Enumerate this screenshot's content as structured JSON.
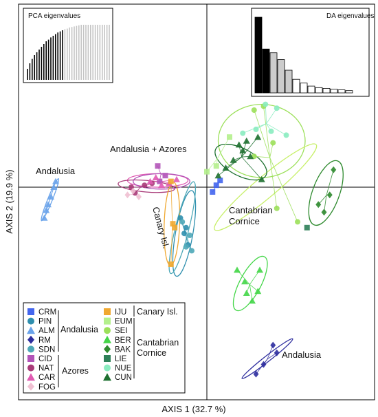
{
  "chart_data": {
    "type": "scatter",
    "xlabel": "AXIS 1 (32.7 %)",
    "ylabel": "AXIS 2 (19.9 %)",
    "annotations": [
      {
        "text": "Andalusia",
        "at": "left"
      },
      {
        "text": "Andalusia + Azores",
        "at": "center-top"
      },
      {
        "text": "Canary Isl.",
        "at": "center"
      },
      {
        "text": "Cantabrian",
        "at": "center-right"
      },
      {
        "text": "Cornice",
        "at": "center-right"
      },
      {
        "text": "Andalusia",
        "at": "bottom-right"
      }
    ],
    "insets": {
      "pca": {
        "title": "PCA eigenvalues",
        "values": [
          0.2,
          0.3,
          0.38,
          0.45,
          0.5,
          0.55,
          0.6,
          0.65,
          0.7,
          0.73,
          0.77,
          0.8,
          0.83,
          0.86,
          0.88,
          0.9,
          0.92,
          0.93,
          0.95,
          0.96,
          0.97,
          0.98,
          0.99,
          1,
          1,
          1,
          1,
          1,
          1,
          1,
          1,
          1,
          1,
          1,
          1,
          1
        ],
        "retained": 16
      },
      "da": {
        "title": "DA eigenvalues",
        "values": [
          1.0,
          0.58,
          0.53,
          0.44,
          0.3,
          0.18,
          0.13,
          0.09,
          0.07,
          0.06,
          0.05,
          0.04,
          0.03
        ],
        "colors": [
          "#000000",
          "#000000",
          "#cccccc",
          "#cccccc",
          "#cccccc",
          "#ffffff",
          "#ffffff",
          "#ffffff",
          "#ffffff",
          "#ffffff",
          "#ffffff",
          "#ffffff",
          "#ffffff"
        ]
      }
    },
    "series": [
      {
        "name": "CRM",
        "region": "Andalusia",
        "color": "#4466ee",
        "shape": "square",
        "points": [
          [
            0.3,
            -0.25
          ],
          [
            0.5,
            0.1
          ],
          [
            0.7,
            0.35
          ]
        ]
      },
      {
        "name": "PIN",
        "region": "Andalusia",
        "color": "#2f8fae",
        "shape": "circle",
        "points": [
          [
            -1.2,
            -2.4
          ],
          [
            -1.4,
            -1.6
          ],
          [
            -1.0,
            -3.0
          ],
          [
            -1.1,
            -2.1
          ]
        ]
      },
      {
        "name": "ALM",
        "region": "Andalusia",
        "color": "#6aa3ea",
        "shape": "triangle",
        "points": [
          [
            -8.0,
            0.3
          ],
          [
            -8.1,
            0.0
          ],
          [
            -8.25,
            -0.5
          ],
          [
            -8.4,
            -0.9
          ],
          [
            -8.5,
            -1.2
          ],
          [
            -8.6,
            -1.6
          ]
        ]
      },
      {
        "name": "RM",
        "region": "Andalusia",
        "color": "#2e2e9e",
        "shape": "diamond",
        "points": [
          [
            3.5,
            -8.2
          ],
          [
            3.7,
            -8.6
          ],
          [
            3.0,
            -9.2
          ],
          [
            2.6,
            -9.7
          ]
        ]
      },
      {
        "name": "SDN",
        "region": "Andalusia",
        "color": "#4fa9b8",
        "shape": "circle",
        "points": [
          [
            -0.9,
            -2.5
          ],
          [
            -1.1,
            -3.1
          ],
          [
            -0.8,
            -3.3
          ],
          [
            -1.3,
            -1.8
          ]
        ]
      },
      {
        "name": "CID",
        "region": "Azores",
        "color": "#b254b8",
        "shape": "square",
        "points": [
          [
            -2.6,
            1.1
          ],
          [
            -2.5,
            0.3
          ],
          [
            -2.2,
            0.6
          ]
        ]
      },
      {
        "name": "NAT",
        "region": "Azores",
        "color": "#a83a78",
        "shape": "circle",
        "points": [
          [
            -4.0,
            0.0
          ],
          [
            -3.3,
            0.1
          ],
          [
            -3.8,
            -0.3
          ],
          [
            -2.9,
            0.2
          ]
        ]
      },
      {
        "name": "CAR",
        "region": "Azores",
        "color": "#e05ab2",
        "shape": "triangle",
        "points": [
          [
            -3.0,
            0.3
          ],
          [
            -2.7,
            0.5
          ],
          [
            -2.4,
            0.1
          ],
          [
            -2.0,
            0.2
          ],
          [
            -1.6,
            0.4
          ]
        ]
      },
      {
        "name": "FOG",
        "region": "Azores",
        "color": "#f0c0d2",
        "shape": "diamond",
        "points": [
          [
            -4.2,
            -0.4
          ],
          [
            -3.9,
            -0.2
          ],
          [
            -3.6,
            -0.5
          ]
        ]
      },
      {
        "name": "IJU",
        "region": "Canary Isl.",
        "color": "#f0a830",
        "shape": "square",
        "points": [
          [
            -1.9,
            0.3
          ],
          [
            -1.8,
            -1.9
          ],
          [
            -1.9,
            -4.0
          ],
          [
            -1.7,
            -2.1
          ]
        ]
      },
      {
        "name": "EUM",
        "region": "Cantabrian Cornice",
        "color": "#b4f08c",
        "shape": "square",
        "points": [
          [
            0.0,
            0.8
          ],
          [
            0.5,
            1.1
          ],
          [
            1.2,
            2.6
          ]
        ]
      },
      {
        "name": "SEI",
        "region": "Cantabrian Cornice",
        "color": "#9ce05a",
        "shape": "circle",
        "points": [
          [
            2.5,
            4.0
          ],
          [
            3.0,
            4.2
          ],
          [
            3.5,
            2.3
          ],
          [
            2.5,
            1.6
          ],
          [
            3.7,
            -1.1
          ],
          [
            4.8,
            -1.8
          ]
        ]
      },
      {
        "name": "BER",
        "region": "Cantabrian Cornice",
        "color": "#44d648",
        "shape": "triangle",
        "points": [
          [
            1.6,
            -4.3
          ],
          [
            2.0,
            -4.9
          ],
          [
            2.1,
            -5.5
          ],
          [
            2.7,
            -5.4
          ],
          [
            2.8,
            -4.3
          ],
          [
            2.4,
            -5.9
          ]
        ]
      },
      {
        "name": "BAK",
        "region": "Cantabrian Cornice",
        "color": "#2e8a2e",
        "shape": "diamond",
        "points": [
          [
            6.7,
            0.9
          ],
          [
            6.5,
            -0.4
          ],
          [
            6.2,
            -1.3
          ],
          [
            5.9,
            -0.9
          ]
        ]
      },
      {
        "name": "LIE",
        "region": "Cantabrian Cornice",
        "color": "#2e8058",
        "shape": "square",
        "points": [
          [
            5.3,
            -2.1
          ]
        ]
      },
      {
        "name": "NUE",
        "region": "Cantabrian Cornice",
        "color": "#8aecc0",
        "shape": "circle",
        "points": [
          [
            3.7,
            4.1
          ],
          [
            2.6,
            3.0
          ],
          [
            3.4,
            2.9
          ],
          [
            1.9,
            2.8
          ],
          [
            3.1,
            4.3
          ],
          [
            4.2,
            2.7
          ]
        ]
      },
      {
        "name": "CUN",
        "region": "Cantabrian Cornice",
        "color": "#1e7030",
        "shape": "triangle",
        "points": [
          [
            0.6,
            0.6
          ],
          [
            1.0,
            1.0
          ],
          [
            1.4,
            1.4
          ],
          [
            1.9,
            1.9
          ],
          [
            2.1,
            2.4
          ],
          [
            2.3,
            1.6
          ],
          [
            1.7,
            2.2
          ],
          [
            2.7,
            2.6
          ],
          [
            2.9,
            0.4
          ]
        ]
      }
    ],
    "ellipses": [
      {
        "group": "ALM",
        "cx": -8.3,
        "cy": -0.65,
        "rx": 1.2,
        "ry": 0.12,
        "angle": -68,
        "color": "#6aa3ea"
      },
      {
        "group": "RM",
        "cx": 3.2,
        "cy": -8.9,
        "rx": 1.7,
        "ry": 0.15,
        "angle": -38,
        "color": "#2e2e9e"
      },
      {
        "group": "SEI",
        "cx": 2.9,
        "cy": 2.4,
        "rx": 2.3,
        "ry": 1.9,
        "angle": 0,
        "color": "#9ce05a"
      },
      {
        "group": "NUE",
        "cx": 3.1,
        "cy": 0.0,
        "rx": 3.5,
        "ry": 0.55,
        "angle": -40,
        "color": "#c8f06a"
      },
      {
        "group": "CUN",
        "cx": 1.8,
        "cy": 1.3,
        "rx": 1.5,
        "ry": 0.7,
        "angle": 28,
        "color": "#1e7030"
      },
      {
        "group": "BAK",
        "cx": 6.3,
        "cy": -0.3,
        "rx": 1.8,
        "ry": 0.7,
        "angle": -70,
        "color": "#2e8a2e"
      },
      {
        "group": "BER",
        "cx": 2.3,
        "cy": -5.0,
        "rx": 1.6,
        "ry": 0.55,
        "angle": -62,
        "color": "#44d648"
      },
      {
        "group": "CAR",
        "cx": -2.6,
        "cy": 0.35,
        "rx": 1.6,
        "ry": 0.35,
        "angle": 0,
        "color": "#e05ab2"
      },
      {
        "group": "NAT",
        "cx": -3.2,
        "cy": 0.05,
        "rx": 1.5,
        "ry": 0.3,
        "angle": 5,
        "color": "#a83a78"
      },
      {
        "group": "CID",
        "cx": -2.4,
        "cy": 0.3,
        "rx": 1.5,
        "ry": 0.4,
        "angle": 0,
        "color": "#b254b8"
      },
      {
        "group": "PIN",
        "cx": -1.2,
        "cy": -2.4,
        "rx": 2.3,
        "ry": 0.45,
        "angle": -80,
        "color": "#2f8fae"
      },
      {
        "group": "IJU",
        "cx": -1.85,
        "cy": -1.9,
        "rx": 2.2,
        "ry": 0.4,
        "angle": -88,
        "color": "#f0a830"
      },
      {
        "group": "SDN",
        "cx": -1.3,
        "cy": -2.1,
        "rx": 2.5,
        "ry": 0.35,
        "angle": -76,
        "color": "#4fa9b8"
      }
    ],
    "legend": {
      "placement": "bottom-left",
      "groups": [
        {
          "label": "Andalusia",
          "codes": [
            "CRM",
            "PIN",
            "ALM",
            "RM",
            "SDN"
          ]
        },
        {
          "label": "Azores",
          "codes": [
            "CID",
            "NAT",
            "CAR",
            "FOG"
          ]
        },
        {
          "label": "Canary Isl.",
          "codes": [
            "IJU"
          ]
        },
        {
          "label_lines": [
            "Cantabrian",
            "Cornice"
          ],
          "codes": [
            "EUM",
            "SEI",
            "BER",
            "BAK",
            "LIE",
            "NUE",
            "CUN"
          ]
        }
      ]
    },
    "grid": false,
    "xlim": [
      -10,
      10
    ],
    "ylim": [
      -12,
      6
    ]
  }
}
